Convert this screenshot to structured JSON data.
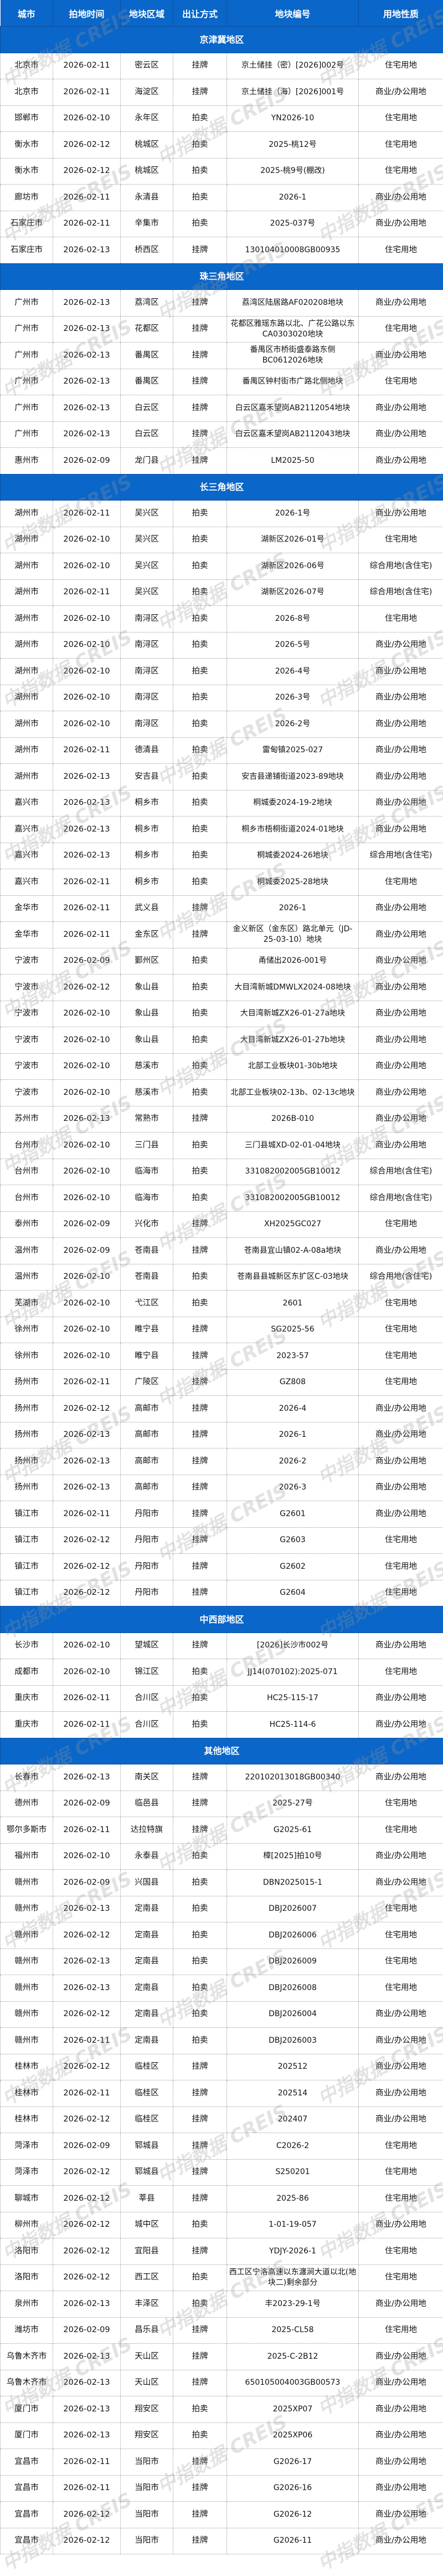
{
  "watermark": "中指数据 CREIS",
  "colors": {
    "header_bg": "#0a66c8",
    "header_text": "#ffffff"
  },
  "header": [
    "城市",
    "拍地时间",
    "地块区域",
    "出让方式",
    "地块编号",
    "用地性质"
  ],
  "sections": [
    {
      "title": "京津冀地区",
      "rows": [
        [
          "北京市",
          "2026-02-11",
          "密云区",
          "挂牌",
          "京土储挂（密）[2026]002号",
          "住宅用地"
        ],
        [
          "北京市",
          "2026-02-11",
          "海淀区",
          "挂牌",
          "京土储挂（海）[2026]001号",
          "商业/办公用地"
        ],
        [
          "邯郸市",
          "2026-02-10",
          "永年区",
          "拍卖",
          "YN2026-10",
          "住宅用地"
        ],
        [
          "衡水市",
          "2026-02-12",
          "桃城区",
          "拍卖",
          "2025-桃12号",
          "住宅用地"
        ],
        [
          "衡水市",
          "2026-02-12",
          "桃城区",
          "拍卖",
          "2025-桃9号(棚改)",
          "住宅用地"
        ],
        [
          "廊坊市",
          "2026-02-11",
          "永清县",
          "拍卖",
          "2026-1",
          "商业/办公用地"
        ],
        [
          "石家庄市",
          "2026-02-11",
          "辛集市",
          "拍卖",
          "2025-037号",
          "商业/办公用地"
        ],
        [
          "石家庄市",
          "2026-02-13",
          "桥西区",
          "挂牌",
          "130104010008GB00935",
          "住宅用地"
        ]
      ]
    },
    {
      "title": "珠三角地区",
      "rows": [
        [
          "广州市",
          "2026-02-13",
          "荔湾区",
          "挂牌",
          "荔湾区陆居路AF020208地块",
          "商业/办公用地"
        ],
        [
          "广州市",
          "2026-02-13",
          "花都区",
          "挂牌",
          "花都区雅瑶东路以北、广花公路以东CA0303020地块",
          "住宅用地"
        ],
        [
          "广州市",
          "2026-02-13",
          "番禺区",
          "挂牌",
          "番禺区市桥街盛泰路东侧BC0612026地块",
          "商业/办公用地"
        ],
        [
          "广州市",
          "2026-02-13",
          "番禺区",
          "挂牌",
          "番禺区钟村街市广路北侧地块",
          "住宅用地"
        ],
        [
          "广州市",
          "2026-02-13",
          "白云区",
          "挂牌",
          "白云区嘉禾望岗AB2112054地块",
          "商业/办公用地"
        ],
        [
          "广州市",
          "2026-02-13",
          "白云区",
          "挂牌",
          "白云区嘉禾望岗AB2112043地块",
          "商业/办公用地"
        ],
        [
          "惠州市",
          "2026-02-09",
          "龙门县",
          "挂牌",
          "LM2025-50",
          "商业/办公用地"
        ]
      ]
    },
    {
      "title": "长三角地区",
      "rows": [
        [
          "湖州市",
          "2026-02-11",
          "吴兴区",
          "拍卖",
          "2026-1号",
          "商业/办公用地"
        ],
        [
          "湖州市",
          "2026-02-10",
          "吴兴区",
          "拍卖",
          "湖新区2026-01号",
          "住宅用地"
        ],
        [
          "湖州市",
          "2026-02-10",
          "吴兴区",
          "拍卖",
          "湖新区2026-06号",
          "综合用地(含住宅)"
        ],
        [
          "湖州市",
          "2026-02-11",
          "吴兴区",
          "拍卖",
          "湖新区2026-07号",
          "综合用地(含住宅)"
        ],
        [
          "湖州市",
          "2026-02-10",
          "南浔区",
          "拍卖",
          "2026-8号",
          "住宅用地"
        ],
        [
          "湖州市",
          "2026-02-10",
          "南浔区",
          "拍卖",
          "2026-5号",
          "商业/办公用地"
        ],
        [
          "湖州市",
          "2026-02-10",
          "南浔区",
          "拍卖",
          "2026-4号",
          "商业/办公用地"
        ],
        [
          "湖州市",
          "2026-02-10",
          "南浔区",
          "拍卖",
          "2026-3号",
          "商业/办公用地"
        ],
        [
          "湖州市",
          "2026-02-10",
          "南浔区",
          "拍卖",
          "2026-2号",
          "商业/办公用地"
        ],
        [
          "湖州市",
          "2026-02-11",
          "德清县",
          "拍卖",
          "雷甸镇2025-027",
          "商业/办公用地"
        ],
        [
          "湖州市",
          "2026-02-13",
          "安吉县",
          "拍卖",
          "安吉县递铺街道2023-89地块",
          "商业/办公用地"
        ],
        [
          "嘉兴市",
          "2026-02-13",
          "桐乡市",
          "拍卖",
          "桐城委2024-19-2地块",
          "商业/办公用地"
        ],
        [
          "嘉兴市",
          "2026-02-13",
          "桐乡市",
          "拍卖",
          "桐乡市梧桐街道2024-01地块",
          "商业/办公用地"
        ],
        [
          "嘉兴市",
          "2026-02-13",
          "桐乡市",
          "拍卖",
          "桐城委2024-26地块",
          "综合用地(含住宅)"
        ],
        [
          "嘉兴市",
          "2026-02-11",
          "桐乡市",
          "拍卖",
          "桐城委2025-28地块",
          "住宅用地"
        ],
        [
          "金华市",
          "2026-02-11",
          "武义县",
          "挂牌",
          "2026-1",
          "商业/办公用地"
        ],
        [
          "金华市",
          "2026-02-11",
          "金东区",
          "挂牌",
          "金义新区（金东区）路北单元（JD-25-03-10）地块",
          "商业/办公用地"
        ],
        [
          "宁波市",
          "2026-02-09",
          "鄞州区",
          "拍卖",
          "甬储出2026-001号",
          "商业/办公用地"
        ],
        [
          "宁波市",
          "2026-02-12",
          "象山县",
          "拍卖",
          "大目湾新城DMWLX2024-08地块",
          "商业/办公用地"
        ],
        [
          "宁波市",
          "2026-02-10",
          "象山县",
          "拍卖",
          "大目湾新城ZX26-01-27a地块",
          "商业/办公用地"
        ],
        [
          "宁波市",
          "2026-02-10",
          "象山县",
          "拍卖",
          "大目湾新城ZX26-01-27b地块",
          "商业/办公用地"
        ],
        [
          "宁波市",
          "2026-02-10",
          "慈溪市",
          "拍卖",
          "北部工业板块01-30b地块",
          "商业/办公用地"
        ],
        [
          "宁波市",
          "2026-02-10",
          "慈溪市",
          "拍卖",
          "北部工业板块02-13b、02-13c地块",
          "商业/办公用地"
        ],
        [
          "苏州市",
          "2026-02-13",
          "常熟市",
          "挂牌",
          "2026B-010",
          "商业/办公用地"
        ],
        [
          "台州市",
          "2026-02-10",
          "三门县",
          "拍卖",
          "三门县城XD-02-01-04地块",
          "商业/办公用地"
        ],
        [
          "台州市",
          "2026-02-10",
          "临海市",
          "拍卖",
          "331082002005GB10012",
          "综合用地(含住宅)"
        ],
        [
          "台州市",
          "2026-02-10",
          "临海市",
          "拍卖",
          "331082002005GB10012",
          "综合用地(含住宅)"
        ],
        [
          "泰州市",
          "2026-02-09",
          "兴化市",
          "挂牌",
          "XH2025GC027",
          "住宅用地"
        ],
        [
          "温州市",
          "2026-02-09",
          "苍南县",
          "挂牌",
          "苍南县宜山镇02-A-08a地块",
          "商业/办公用地"
        ],
        [
          "温州市",
          "2026-02-10",
          "苍南县",
          "拍卖",
          "苍南县县城新区东扩区C-03地块",
          "综合用地(含住宅)"
        ],
        [
          "芜湖市",
          "2026-02-10",
          "弋江区",
          "拍卖",
          "2601",
          "住宅用地"
        ],
        [
          "徐州市",
          "2026-02-10",
          "睢宁县",
          "挂牌",
          "SG2025-56",
          "住宅用地"
        ],
        [
          "徐州市",
          "2026-02-10",
          "睢宁县",
          "挂牌",
          "2023-57",
          "住宅用地"
        ],
        [
          "扬州市",
          "2026-02-11",
          "广陵区",
          "挂牌",
          "GZ808",
          "住宅用地"
        ],
        [
          "扬州市",
          "2026-02-12",
          "高邮市",
          "挂牌",
          "2026-4",
          "商业/办公用地"
        ],
        [
          "扬州市",
          "2026-02-13",
          "高邮市",
          "挂牌",
          "2026-1",
          "商业/办公用地"
        ],
        [
          "扬州市",
          "2026-02-13",
          "高邮市",
          "挂牌",
          "2026-2",
          "商业/办公用地"
        ],
        [
          "扬州市",
          "2026-02-13",
          "高邮市",
          "挂牌",
          "2026-3",
          "商业/办公用地"
        ],
        [
          "镇江市",
          "2026-02-11",
          "丹阳市",
          "挂牌",
          "G2601",
          "商业/办公用地"
        ],
        [
          "镇江市",
          "2026-02-12",
          "丹阳市",
          "挂牌",
          "G2603",
          "住宅用地"
        ],
        [
          "镇江市",
          "2026-02-12",
          "丹阳市",
          "挂牌",
          "G2602",
          "住宅用地"
        ],
        [
          "镇江市",
          "2026-02-12",
          "丹阳市",
          "挂牌",
          "G2604",
          "住宅用地"
        ]
      ]
    },
    {
      "title": "中西部地区",
      "rows": [
        [
          "长沙市",
          "2026-02-10",
          "望城区",
          "挂牌",
          "[2026]长沙市002号",
          "商业/办公用地"
        ],
        [
          "成都市",
          "2026-02-10",
          "锦江区",
          "拍卖",
          "JJ14(070102):2025-071",
          "住宅用地"
        ],
        [
          "重庆市",
          "2026-02-11",
          "合川区",
          "拍卖",
          "HC25-115-17",
          "商业/办公用地"
        ],
        [
          "重庆市",
          "2026-02-11",
          "合川区",
          "拍卖",
          "HC25-114-6",
          "商业/办公用地"
        ]
      ]
    },
    {
      "title": "其他地区",
      "rows": [
        [
          "长春市",
          "2026-02-13",
          "南关区",
          "挂牌",
          "220102013018GB00340",
          "商业/办公用地"
        ],
        [
          "德州市",
          "2026-02-09",
          "临邑县",
          "挂牌",
          "2025-27号",
          "住宅用地"
        ],
        [
          "鄂尔多斯市",
          "2026-02-11",
          "达拉特旗",
          "挂牌",
          "G2025-61",
          "住宅用地"
        ],
        [
          "福州市",
          "2026-02-10",
          "永泰县",
          "拍卖",
          "樟[2025]拍10号",
          "商业/办公用地"
        ],
        [
          "赣州市",
          "2026-02-09",
          "兴国县",
          "拍卖",
          "DBN2025015-1",
          "商业/办公用地"
        ],
        [
          "赣州市",
          "2026-02-13",
          "定南县",
          "拍卖",
          "DBJ2026007",
          "住宅用地"
        ],
        [
          "赣州市",
          "2026-02-12",
          "定南县",
          "拍卖",
          "DBJ2026006",
          "住宅用地"
        ],
        [
          "赣州市",
          "2026-02-13",
          "定南县",
          "拍卖",
          "DBJ2026009",
          "住宅用地"
        ],
        [
          "赣州市",
          "2026-02-13",
          "定南县",
          "拍卖",
          "DBJ2026008",
          "住宅用地"
        ],
        [
          "赣州市",
          "2026-02-12",
          "定南县",
          "拍卖",
          "DBJ2026004",
          "商业/办公用地"
        ],
        [
          "赣州市",
          "2026-02-11",
          "定南县",
          "拍卖",
          "DBJ2026003",
          "商业/办公用地"
        ],
        [
          "桂林市",
          "2026-02-12",
          "临桂区",
          "挂牌",
          "202512",
          "商业/办公用地"
        ],
        [
          "桂林市",
          "2026-02-11",
          "临桂区",
          "挂牌",
          "202514",
          "商业/办公用地"
        ],
        [
          "桂林市",
          "2026-02-12",
          "临桂区",
          "挂牌",
          "202407",
          "商业/办公用地"
        ],
        [
          "菏泽市",
          "2026-02-09",
          "郓城县",
          "挂牌",
          "C2026-2",
          "住宅用地"
        ],
        [
          "菏泽市",
          "2026-02-12",
          "郓城县",
          "挂牌",
          "S250201",
          "住宅用地"
        ],
        [
          "聊城市",
          "2026-02-12",
          "莘县",
          "挂牌",
          "2025-86",
          "住宅用地"
        ],
        [
          "柳州市",
          "2026-02-12",
          "城中区",
          "拍卖",
          "1-01-19-057",
          "商业/办公用地"
        ],
        [
          "洛阳市",
          "2026-02-12",
          "宜阳县",
          "挂牌",
          "YDJY-2026-1",
          "住宅用地"
        ],
        [
          "洛阳市",
          "2026-02-12",
          "西工区",
          "拍卖",
          "西工区宁洛高速以东瀍涧大道以北(地块二)剩余部分",
          "住宅用地"
        ],
        [
          "泉州市",
          "2026-02-13",
          "丰泽区",
          "拍卖",
          "丰2023-29-1号",
          "商业/办公用地"
        ],
        [
          "潍坊市",
          "2026-02-09",
          "昌乐县",
          "挂牌",
          "2025-CL58",
          "住宅用地"
        ],
        [
          "乌鲁木齐市",
          "2026-02-13",
          "天山区",
          "挂牌",
          "2025-C-2B12",
          "商业/办公用地"
        ],
        [
          "乌鲁木齐市",
          "2026-02-13",
          "天山区",
          "挂牌",
          "650105004003GB00573",
          "商业/办公用地"
        ],
        [
          "厦门市",
          "2026-02-13",
          "翔安区",
          "拍卖",
          "2025XP07",
          "商业/办公用地"
        ],
        [
          "厦门市",
          "2026-02-13",
          "翔安区",
          "拍卖",
          "2025XP06",
          "商业/办公用地"
        ],
        [
          "宜昌市",
          "2026-02-11",
          "当阳市",
          "挂牌",
          "G2026-17",
          "商业/办公用地"
        ],
        [
          "宜昌市",
          "2026-02-11",
          "当阳市",
          "挂牌",
          "G2026-16",
          "商业/办公用地"
        ],
        [
          "宜昌市",
          "2026-02-12",
          "当阳市",
          "挂牌",
          "G2026-12",
          "商业/办公用地"
        ],
        [
          "宜昌市",
          "2026-02-12",
          "当阳市",
          "挂牌",
          "G2026-11",
          "商业/办公用地"
        ]
      ]
    }
  ]
}
